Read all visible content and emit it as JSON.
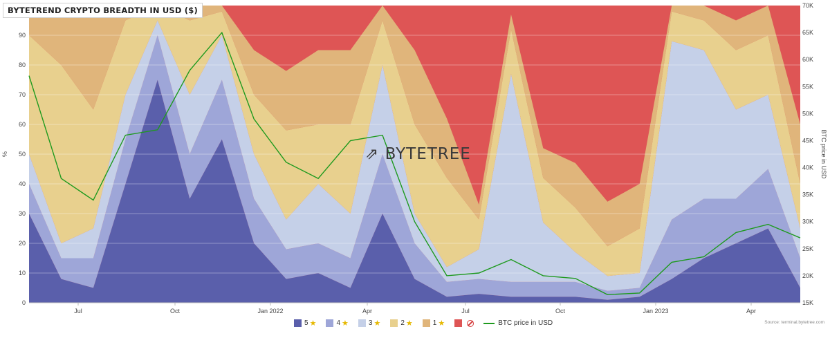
{
  "title": "BYTETREND CRYPTO BREADTH IN USD ($)",
  "watermark": "BYTETREE",
  "source": "Source: terminal.bytetree.com",
  "legend": {
    "items": [
      {
        "label": "5",
        "icon": "star-icon",
        "color": "#5a5fab"
      },
      {
        "label": "4",
        "icon": "star-icon",
        "color": "#9ea6d8"
      },
      {
        "label": "3",
        "icon": "star-icon",
        "color": "#c5d0e8"
      },
      {
        "label": "2",
        "icon": "star-icon",
        "color": "#e8d08e"
      },
      {
        "label": "1",
        "icon": "star-icon",
        "color": "#e0b57b"
      },
      {
        "label": "",
        "icon": "ban-icon",
        "color": "#de5555"
      }
    ],
    "line_label": "BTC price in USD",
    "line_color": "#1e9a1e"
  },
  "chart_data": {
    "type": "area",
    "stacked": true,
    "x_ticks": [
      "Jul",
      "Oct",
      "Jan 2022",
      "Apr",
      "Jul",
      "Oct",
      "Jan 2023",
      "Apr"
    ],
    "y_left": {
      "label": "%",
      "ticks": [
        0,
        10,
        20,
        30,
        40,
        50,
        60,
        70,
        80,
        90
      ],
      "range": [
        0,
        100
      ]
    },
    "y_right": {
      "label": "BTC price in USD",
      "ticks": [
        "15K",
        "20K",
        "25K",
        "30K",
        "35K",
        "40K",
        "45K",
        "50K",
        "55K",
        "60K",
        "65K",
        "70K"
      ],
      "range": [
        15000,
        70000
      ]
    },
    "grid": true,
    "dates": [
      "2021-05",
      "2021-06",
      "2021-07",
      "2021-08",
      "2021-09",
      "2021-10",
      "2021-11",
      "2021-12",
      "2022-01",
      "2022-02",
      "2022-03",
      "2022-04",
      "2022-05",
      "2022-06",
      "2022-07",
      "2022-08",
      "2022-09",
      "2022-10",
      "2022-11",
      "2022-12",
      "2023-01",
      "2023-02",
      "2023-03",
      "2023-04",
      "2023-05"
    ],
    "series": [
      {
        "name": "5",
        "color": "#5a5fab",
        "values": [
          30,
          8,
          5,
          40,
          75,
          35,
          55,
          20,
          8,
          10,
          5,
          30,
          8,
          2,
          3,
          2,
          2,
          2,
          1,
          2,
          8,
          15,
          20,
          25,
          5
        ]
      },
      {
        "name": "4",
        "color": "#9ea6d8",
        "values": [
          10,
          7,
          10,
          15,
          15,
          15,
          20,
          15,
          10,
          10,
          10,
          20,
          12,
          5,
          5,
          5,
          5,
          5,
          3,
          3,
          20,
          20,
          15,
          20,
          10
        ]
      },
      {
        "name": "3",
        "color": "#c5d0e8",
        "values": [
          10,
          5,
          10,
          15,
          5,
          20,
          15,
          15,
          10,
          20,
          15,
          30,
          10,
          5,
          10,
          70,
          20,
          10,
          5,
          5,
          60,
          50,
          30,
          25,
          10
        ]
      },
      {
        "name": "2",
        "color": "#e8d08e",
        "values": [
          40,
          60,
          40,
          25,
          5,
          25,
          8,
          20,
          30,
          20,
          30,
          15,
          30,
          30,
          10,
          15,
          15,
          15,
          10,
          15,
          10,
          10,
          20,
          20,
          15
        ]
      },
      {
        "name": "1",
        "color": "#e0b57b",
        "values": [
          10,
          20,
          35,
          5,
          0,
          5,
          2,
          15,
          20,
          25,
          25,
          5,
          25,
          20,
          5,
          5,
          10,
          15,
          15,
          15,
          2,
          5,
          10,
          10,
          20
        ]
      }
    ],
    "btc_price": [
      57000,
      38000,
      34000,
      46000,
      47000,
      58000,
      65000,
      49000,
      41000,
      38000,
      45000,
      46000,
      30000,
      20000,
      20500,
      23000,
      20000,
      19500,
      16500,
      16800,
      22500,
      23500,
      28000,
      29500,
      27000
    ]
  }
}
